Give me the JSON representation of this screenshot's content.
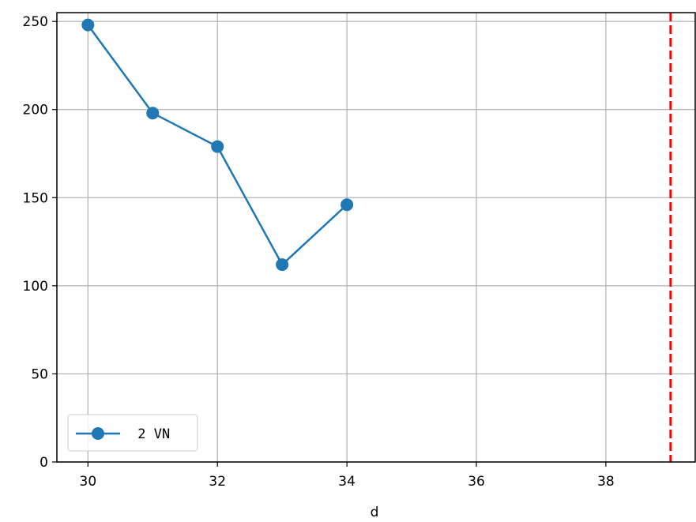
{
  "chart_data": {
    "type": "line",
    "xlabel": "d",
    "ylabel": "",
    "xlim": [
      29.52,
      39.38
    ],
    "ylim": [
      0,
      255
    ],
    "xticks": [
      30,
      32,
      34,
      36,
      38
    ],
    "yticks": [
      0,
      50,
      100,
      150,
      200,
      250
    ],
    "x_tick_labels": [
      "30",
      "32",
      "34",
      "36",
      "38"
    ],
    "y_tick_labels": [
      "0",
      "50",
      "100",
      "150",
      "200",
      "250"
    ],
    "grid": true,
    "legend_position": "lower-left",
    "series": [
      {
        "name": " 2 VN",
        "color": "#1f77b4",
        "marker": "circle",
        "x": [
          30,
          31,
          32,
          33,
          34
        ],
        "y": [
          248,
          198,
          179,
          112,
          146
        ]
      }
    ],
    "reference_line": {
      "orientation": "vertical",
      "x": 39,
      "color": "#ff0000",
      "style": "dashed"
    }
  }
}
